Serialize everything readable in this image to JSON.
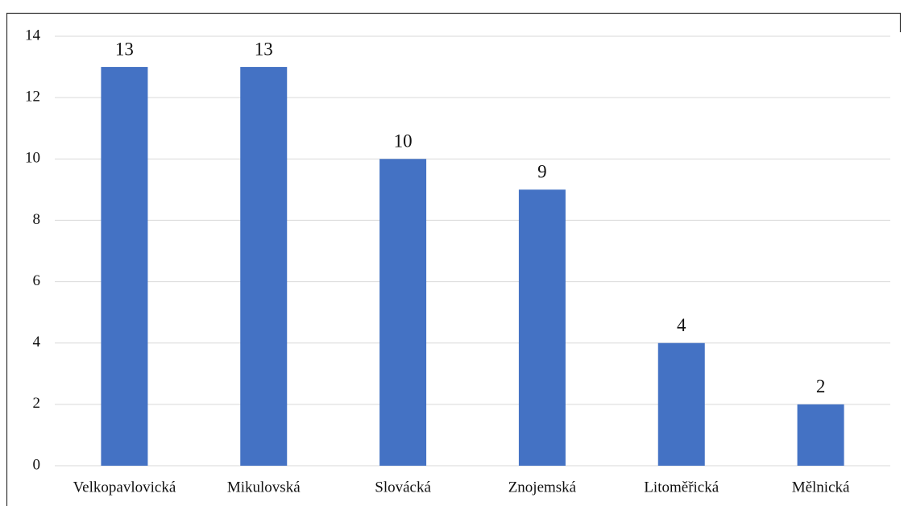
{
  "chart_data": {
    "type": "bar",
    "categories": [
      "Velkopavlovická",
      "Mikulovská",
      "Slovácká",
      "Znojemská",
      "Litoměřická",
      "Mělnická"
    ],
    "values": [
      13,
      13,
      10,
      9,
      4,
      2
    ],
    "color": "#4472c4",
    "ylim": [
      0,
      14
    ],
    "yticks": [
      0,
      2,
      4,
      6,
      8,
      10,
      12,
      14
    ],
    "grid": true,
    "data_labels": true
  }
}
